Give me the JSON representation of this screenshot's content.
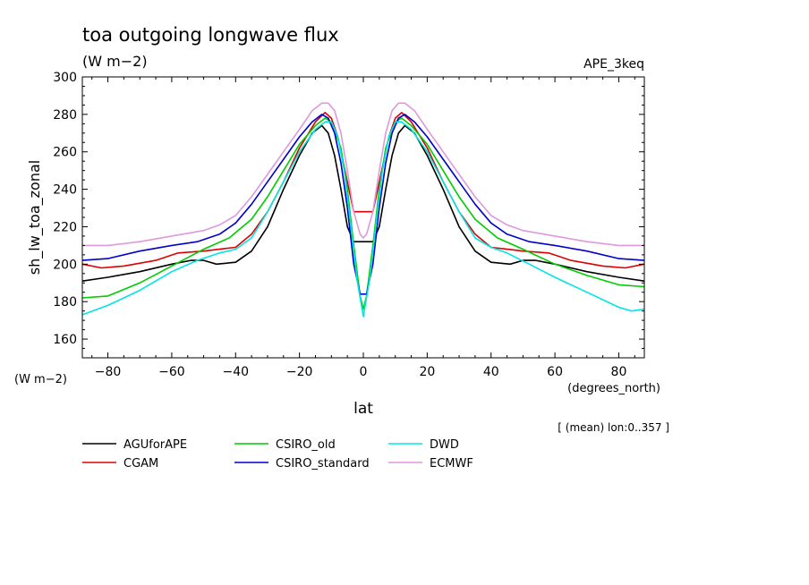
{
  "chart_data": {
    "type": "line",
    "title": "toa outgoing longwave flux",
    "units_label": "(W m−2)",
    "experiment": "APE_3keq",
    "ylabel": "sh_lw_toa_zonal",
    "yunits": "(W m−2)",
    "xlabel": "lat",
    "xunits": "(degrees_north)",
    "note": "[ (mean) lon:0..357 ]",
    "xlim": [
      -88,
      88
    ],
    "ylim": [
      150,
      300
    ],
    "xticks": [
      -80,
      -60,
      -40,
      -20,
      0,
      20,
      40,
      60,
      80
    ],
    "yticks": [
      160,
      180,
      200,
      220,
      240,
      260,
      280,
      300
    ],
    "grid": false,
    "legend_position": "bottom",
    "series": [
      {
        "name": "AGUforAPE",
        "color": "#000000",
        "points": [
          [
            -88,
            191
          ],
          [
            -80,
            193
          ],
          [
            -70,
            196
          ],
          [
            -60,
            200
          ],
          [
            -54,
            202
          ],
          [
            -50,
            202
          ],
          [
            -46,
            200
          ],
          [
            -40,
            201
          ],
          [
            -35,
            207
          ],
          [
            -30,
            220
          ],
          [
            -25,
            240
          ],
          [
            -20,
            258
          ],
          [
            -16,
            270
          ],
          [
            -13,
            274
          ],
          [
            -11,
            270
          ],
          [
            -9,
            258
          ],
          [
            -7,
            240
          ],
          [
            -5,
            220
          ],
          [
            -3,
            212
          ],
          [
            0,
            212
          ],
          [
            3,
            212
          ],
          [
            5,
            220
          ],
          [
            7,
            240
          ],
          [
            9,
            258
          ],
          [
            11,
            270
          ],
          [
            13,
            274
          ],
          [
            16,
            270
          ],
          [
            20,
            258
          ],
          [
            25,
            240
          ],
          [
            30,
            220
          ],
          [
            35,
            207
          ],
          [
            40,
            201
          ],
          [
            46,
            200
          ],
          [
            50,
            202
          ],
          [
            54,
            202
          ],
          [
            60,
            200
          ],
          [
            70,
            196
          ],
          [
            80,
            193
          ],
          [
            88,
            191
          ]
        ]
      },
      {
        "name": "CGAM",
        "color": "#dd0000",
        "points": [
          [
            -88,
            200
          ],
          [
            -82,
            198
          ],
          [
            -75,
            199
          ],
          [
            -65,
            202
          ],
          [
            -58,
            206
          ],
          [
            -50,
            207
          ],
          [
            -45,
            208
          ],
          [
            -40,
            209
          ],
          [
            -35,
            216
          ],
          [
            -30,
            228
          ],
          [
            -25,
            244
          ],
          [
            -20,
            262
          ],
          [
            -15,
            276
          ],
          [
            -12,
            281
          ],
          [
            -10,
            278
          ],
          [
            -8,
            268
          ],
          [
            -6,
            252
          ],
          [
            -4,
            236
          ],
          [
            -3,
            228
          ],
          [
            0,
            228
          ],
          [
            3,
            228
          ],
          [
            4,
            236
          ],
          [
            6,
            252
          ],
          [
            8,
            268
          ],
          [
            10,
            278
          ],
          [
            12,
            281
          ],
          [
            15,
            276
          ],
          [
            20,
            262
          ],
          [
            25,
            244
          ],
          [
            30,
            228
          ],
          [
            35,
            216
          ],
          [
            40,
            209
          ],
          [
            45,
            208
          ],
          [
            50,
            207
          ],
          [
            58,
            206
          ],
          [
            65,
            202
          ],
          [
            75,
            199
          ],
          [
            82,
            198
          ],
          [
            88,
            200
          ]
        ]
      },
      {
        "name": "CSIRO_old",
        "color": "#00cc00",
        "points": [
          [
            -88,
            182
          ],
          [
            -80,
            183
          ],
          [
            -70,
            190
          ],
          [
            -60,
            199
          ],
          [
            -50,
            208
          ],
          [
            -42,
            214
          ],
          [
            -35,
            224
          ],
          [
            -30,
            236
          ],
          [
            -25,
            250
          ],
          [
            -20,
            264
          ],
          [
            -15,
            274
          ],
          [
            -12,
            278
          ],
          [
            -10,
            276
          ],
          [
            -7,
            262
          ],
          [
            -5,
            240
          ],
          [
            -3,
            210
          ],
          [
            -1,
            183
          ],
          [
            0,
            176
          ],
          [
            1,
            183
          ],
          [
            3,
            210
          ],
          [
            5,
            240
          ],
          [
            7,
            262
          ],
          [
            10,
            276
          ],
          [
            12,
            278
          ],
          [
            15,
            274
          ],
          [
            20,
            264
          ],
          [
            25,
            250
          ],
          [
            30,
            236
          ],
          [
            35,
            224
          ],
          [
            42,
            214
          ],
          [
            50,
            208
          ],
          [
            60,
            200
          ],
          [
            70,
            194
          ],
          [
            80,
            189
          ],
          [
            88,
            188
          ]
        ]
      },
      {
        "name": "CSIRO_standard",
        "color": "#0000cc",
        "points": [
          [
            -88,
            202
          ],
          [
            -80,
            203
          ],
          [
            -70,
            207
          ],
          [
            -60,
            210
          ],
          [
            -52,
            212
          ],
          [
            -45,
            216
          ],
          [
            -40,
            222
          ],
          [
            -35,
            232
          ],
          [
            -30,
            244
          ],
          [
            -25,
            256
          ],
          [
            -20,
            268
          ],
          [
            -16,
            276
          ],
          [
            -13,
            280
          ],
          [
            -11,
            278
          ],
          [
            -9,
            270
          ],
          [
            -7,
            254
          ],
          [
            -5,
            230
          ],
          [
            -3,
            200
          ],
          [
            -1,
            184
          ],
          [
            0,
            184
          ],
          [
            1,
            184
          ],
          [
            3,
            200
          ],
          [
            5,
            230
          ],
          [
            7,
            254
          ],
          [
            9,
            270
          ],
          [
            11,
            278
          ],
          [
            13,
            280
          ],
          [
            16,
            276
          ],
          [
            20,
            268
          ],
          [
            25,
            256
          ],
          [
            30,
            244
          ],
          [
            35,
            232
          ],
          [
            40,
            222
          ],
          [
            45,
            216
          ],
          [
            52,
            212
          ],
          [
            60,
            210
          ],
          [
            70,
            207
          ],
          [
            80,
            203
          ],
          [
            88,
            202
          ]
        ]
      },
      {
        "name": "DWD",
        "color": "#00e5e5",
        "points": [
          [
            -88,
            173
          ],
          [
            -80,
            178
          ],
          [
            -70,
            186
          ],
          [
            -60,
            196
          ],
          [
            -52,
            202
          ],
          [
            -45,
            206
          ],
          [
            -40,
            208
          ],
          [
            -35,
            214
          ],
          [
            -30,
            228
          ],
          [
            -25,
            244
          ],
          [
            -20,
            260
          ],
          [
            -15,
            272
          ],
          [
            -12,
            276
          ],
          [
            -10,
            276
          ],
          [
            -8,
            268
          ],
          [
            -6,
            250
          ],
          [
            -4,
            222
          ],
          [
            -2,
            192
          ],
          [
            0,
            172
          ],
          [
            2,
            192
          ],
          [
            4,
            222
          ],
          [
            6,
            250
          ],
          [
            8,
            268
          ],
          [
            10,
            276
          ],
          [
            12,
            276
          ],
          [
            15,
            272
          ],
          [
            20,
            260
          ],
          [
            25,
            244
          ],
          [
            30,
            228
          ],
          [
            35,
            214
          ],
          [
            40,
            209
          ],
          [
            45,
            206
          ],
          [
            52,
            200
          ],
          [
            60,
            193
          ],
          [
            70,
            185
          ],
          [
            80,
            177
          ],
          [
            84,
            175
          ],
          [
            88,
            176
          ]
        ]
      },
      {
        "name": "ECMWF",
        "color": "#dd99dd",
        "points": [
          [
            -88,
            210
          ],
          [
            -80,
            210
          ],
          [
            -70,
            212
          ],
          [
            -60,
            215
          ],
          [
            -50,
            218
          ],
          [
            -45,
            221
          ],
          [
            -40,
            226
          ],
          [
            -35,
            236
          ],
          [
            -30,
            248
          ],
          [
            -25,
            260
          ],
          [
            -20,
            272
          ],
          [
            -16,
            282
          ],
          [
            -13,
            286
          ],
          [
            -11,
            286
          ],
          [
            -9,
            282
          ],
          [
            -7,
            270
          ],
          [
            -5,
            250
          ],
          [
            -3,
            228
          ],
          [
            -1,
            216
          ],
          [
            0,
            214
          ],
          [
            1,
            216
          ],
          [
            3,
            228
          ],
          [
            5,
            250
          ],
          [
            7,
            270
          ],
          [
            9,
            282
          ],
          [
            11,
            286
          ],
          [
            13,
            286
          ],
          [
            16,
            282
          ],
          [
            20,
            272
          ],
          [
            25,
            260
          ],
          [
            30,
            248
          ],
          [
            35,
            236
          ],
          [
            40,
            226
          ],
          [
            45,
            221
          ],
          [
            50,
            218
          ],
          [
            60,
            215
          ],
          [
            70,
            212
          ],
          [
            80,
            210
          ],
          [
            88,
            210
          ]
        ]
      }
    ]
  }
}
